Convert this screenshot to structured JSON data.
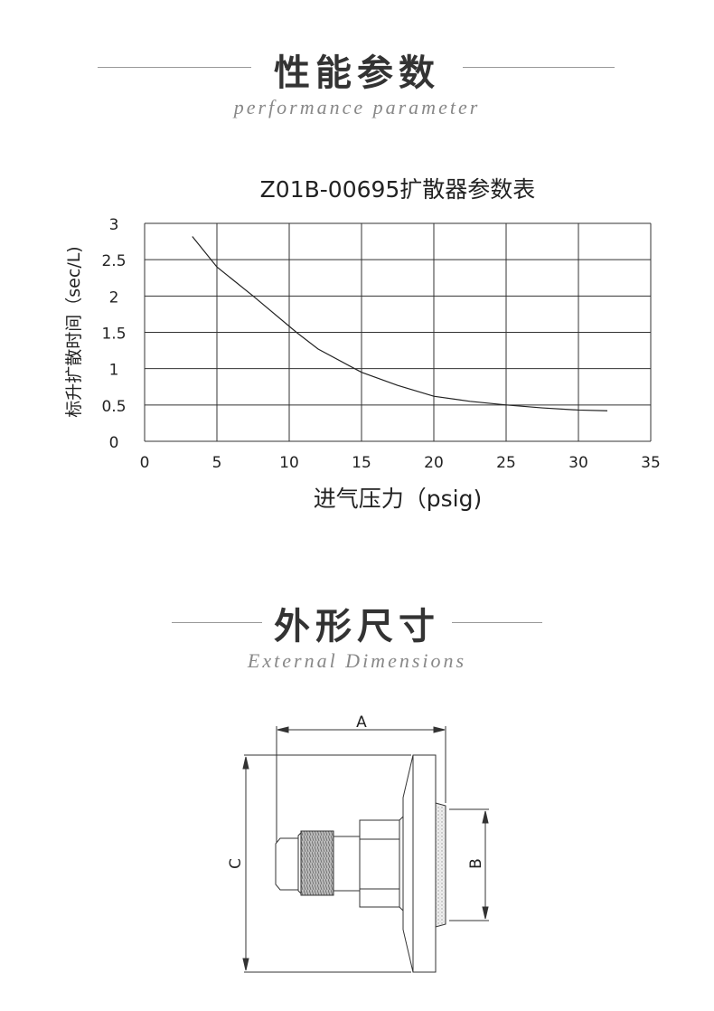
{
  "section1": {
    "title": "性能参数",
    "subtitle": "performance parameter"
  },
  "section2": {
    "title": "外形尺寸",
    "subtitle": "External Dimensions"
  },
  "chart_data": {
    "type": "line",
    "title": "Z01B-00695扩散器参数表",
    "xlabel": "进气压力（psig)",
    "ylabel": "标升扩散时间（sec/L)",
    "xlim": [
      0,
      35
    ],
    "ylim": [
      0,
      3
    ],
    "xticks": [
      "0",
      "5",
      "10",
      "15",
      "20",
      "25",
      "30",
      "35"
    ],
    "yticks": [
      "0",
      "0.5",
      "1",
      "1.5",
      "2",
      "2.5",
      "3"
    ],
    "grid": true,
    "series": [
      {
        "x": [
          3.3,
          5,
          7.5,
          10.5,
          12,
          15,
          17.5,
          20,
          22.5,
          25,
          27.5,
          30,
          32
        ],
        "y": [
          2.82,
          2.4,
          2.0,
          1.5,
          1.27,
          0.95,
          0.77,
          0.62,
          0.55,
          0.5,
          0.46,
          0.43,
          0.42
        ]
      }
    ]
  },
  "diagram": {
    "labels": {
      "a": "A",
      "b": "B",
      "c": "C"
    }
  }
}
